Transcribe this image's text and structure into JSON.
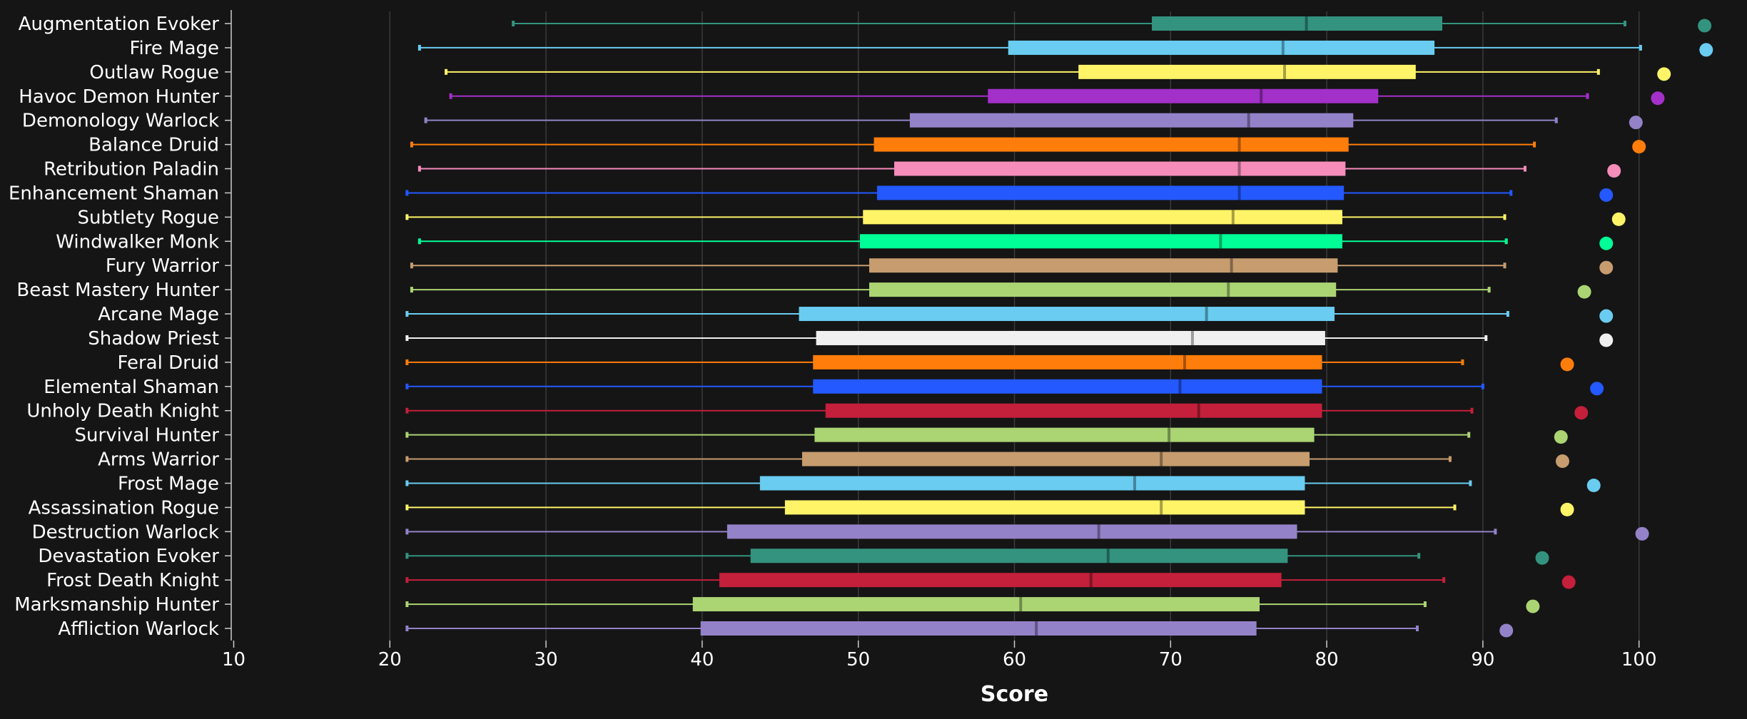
{
  "chart_data": {
    "type": "boxplot",
    "xlabel": "Score",
    "ylabel": "",
    "xlim": [
      10,
      105
    ],
    "xticks": [
      10,
      20,
      30,
      40,
      50,
      60,
      70,
      80,
      90,
      100
    ],
    "grid": "vertical",
    "background": "#151515",
    "gridline_color": "#3a3a3a",
    "rows": [
      {
        "name": "Augmentation Evoker",
        "color": "#33937f",
        "min": 27.9,
        "q1": 68.8,
        "median": 78.7,
        "q3": 87.4,
        "max": 99.1,
        "top": 104.2
      },
      {
        "name": "Fire Mage",
        "color": "#69ccf0",
        "min": 21.9,
        "q1": 59.6,
        "median": 77.2,
        "q3": 86.9,
        "max": 100.1,
        "top": 104.3
      },
      {
        "name": "Outlaw Rogue",
        "color": "#fff468",
        "min": 23.6,
        "q1": 64.1,
        "median": 77.3,
        "q3": 85.7,
        "max": 97.4,
        "top": 101.6
      },
      {
        "name": "Havoc Demon Hunter",
        "color": "#a330c9",
        "min": 23.9,
        "q1": 58.3,
        "median": 75.8,
        "q3": 83.3,
        "max": 96.7,
        "top": 101.2
      },
      {
        "name": "Demonology Warlock",
        "color": "#9482c9",
        "min": 22.3,
        "q1": 53.3,
        "median": 75.0,
        "q3": 81.7,
        "max": 94.7,
        "top": 99.8
      },
      {
        "name": "Balance Druid",
        "color": "#ff7d0a",
        "min": 21.4,
        "q1": 51.0,
        "median": 74.4,
        "q3": 81.4,
        "max": 93.3,
        "top": 100.0
      },
      {
        "name": "Retribution Paladin",
        "color": "#f58cba",
        "min": 21.9,
        "q1": 52.3,
        "median": 74.4,
        "q3": 81.2,
        "max": 92.7,
        "top": 98.4
      },
      {
        "name": "Enhancement Shaman",
        "color": "#2359ff",
        "min": 21.1,
        "q1": 51.2,
        "median": 74.4,
        "q3": 81.1,
        "max": 91.8,
        "top": 97.9
      },
      {
        "name": "Subtlety Rogue",
        "color": "#fff468",
        "min": 21.1,
        "q1": 50.3,
        "median": 74.0,
        "q3": 81.0,
        "max": 91.4,
        "top": 98.7
      },
      {
        "name": "Windwalker Monk",
        "color": "#00ff96",
        "min": 21.9,
        "q1": 50.1,
        "median": 73.2,
        "q3": 81.0,
        "max": 91.5,
        "top": 97.9
      },
      {
        "name": "Fury Warrior",
        "color": "#c79c6e",
        "min": 21.4,
        "q1": 50.7,
        "median": 73.9,
        "q3": 80.7,
        "max": 91.4,
        "top": 97.9
      },
      {
        "name": "Beast Mastery Hunter",
        "color": "#abd473",
        "min": 21.4,
        "q1": 50.7,
        "median": 73.7,
        "q3": 80.6,
        "max": 90.4,
        "top": 96.5
      },
      {
        "name": "Arcane Mage",
        "color": "#69ccf0",
        "min": 21.1,
        "q1": 46.2,
        "median": 72.3,
        "q3": 80.5,
        "max": 91.6,
        "top": 97.9
      },
      {
        "name": "Shadow Priest",
        "color": "#f0f0f0",
        "min": 21.1,
        "q1": 47.3,
        "median": 71.4,
        "q3": 79.9,
        "max": 90.2,
        "top": 97.9
      },
      {
        "name": "Feral Druid",
        "color": "#ff7d0a",
        "min": 21.1,
        "q1": 47.1,
        "median": 70.9,
        "q3": 79.7,
        "max": 88.7,
        "top": 95.4
      },
      {
        "name": "Elemental Shaman",
        "color": "#2359ff",
        "min": 21.1,
        "q1": 47.1,
        "median": 70.6,
        "q3": 79.7,
        "max": 90.0,
        "top": 97.3
      },
      {
        "name": "Unholy Death Knight",
        "color": "#c41f3b",
        "min": 21.1,
        "q1": 47.9,
        "median": 71.8,
        "q3": 79.7,
        "max": 89.3,
        "top": 96.3
      },
      {
        "name": "Survival Hunter",
        "color": "#abd473",
        "min": 21.1,
        "q1": 47.2,
        "median": 69.9,
        "q3": 79.2,
        "max": 89.1,
        "top": 95.0
      },
      {
        "name": "Arms Warrior",
        "color": "#c79c6e",
        "min": 21.1,
        "q1": 46.4,
        "median": 69.4,
        "q3": 78.9,
        "max": 87.9,
        "top": 95.1
      },
      {
        "name": "Frost Mage",
        "color": "#69ccf0",
        "min": 21.1,
        "q1": 43.7,
        "median": 67.7,
        "q3": 78.6,
        "max": 89.2,
        "top": 97.1
      },
      {
        "name": "Assassination Rogue",
        "color": "#fff468",
        "min": 21.1,
        "q1": 45.3,
        "median": 69.4,
        "q3": 78.6,
        "max": 88.2,
        "top": 95.4
      },
      {
        "name": "Destruction Warlock",
        "color": "#9482c9",
        "min": 21.1,
        "q1": 41.6,
        "median": 65.4,
        "q3": 78.1,
        "max": 90.8,
        "top": 100.2
      },
      {
        "name": "Devastation Evoker",
        "color": "#33937f",
        "min": 21.1,
        "q1": 43.1,
        "median": 66.0,
        "q3": 77.5,
        "max": 85.9,
        "top": 93.8
      },
      {
        "name": "Frost Death Knight",
        "color": "#c41f3b",
        "min": 21.1,
        "q1": 41.1,
        "median": 64.9,
        "q3": 77.1,
        "max": 87.5,
        "top": 95.5
      },
      {
        "name": "Marksmanship Hunter",
        "color": "#abd473",
        "min": 21.1,
        "q1": 39.4,
        "median": 60.4,
        "q3": 75.7,
        "max": 86.3,
        "top": 93.2
      },
      {
        "name": "Affliction Warlock",
        "color": "#9482c9",
        "min": 21.1,
        "q1": 39.9,
        "median": 61.4,
        "q3": 75.5,
        "max": 85.8,
        "top": 91.5
      }
    ]
  }
}
